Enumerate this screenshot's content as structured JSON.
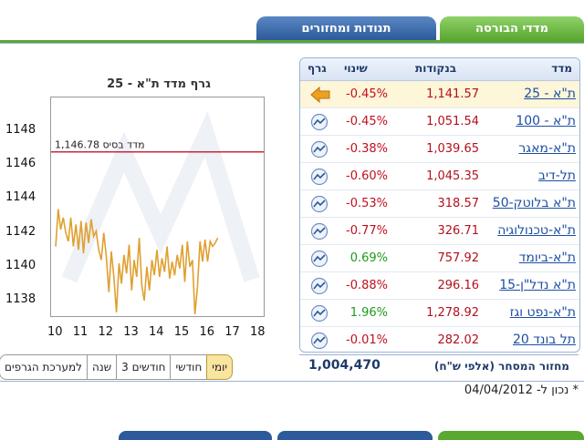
{
  "tabs": [
    {
      "label": "מדדי הבורסה",
      "active": true
    },
    {
      "label": "תנודות ומחזורים",
      "active": false
    }
  ],
  "chart": {
    "title": "גרף מדד ת\"א - 25",
    "base_label": "מדד בסיס 1,146.78",
    "base_value": 1146.78,
    "y_ticks": [
      "1148",
      "1146",
      "1144",
      "1142",
      "1140",
      "1138"
    ],
    "x_ticks": [
      "10",
      "11",
      "12",
      "13",
      "14",
      "15",
      "16",
      "17",
      "18"
    ]
  },
  "chart_data": {
    "type": "line",
    "title": "גרף מדד ת\"א - 25",
    "xlabel": "",
    "ylabel": "",
    "xlim": [
      10,
      18
    ],
    "ylim": [
      1137,
      1149
    ],
    "reference_line": {
      "label": "מדד בסיס 1,146.78",
      "value": 1146.78,
      "color": "#c8283a"
    },
    "series": [
      {
        "color": "#e0a030",
        "x": [
          10.0,
          10.1,
          10.2,
          10.3,
          10.4,
          10.5,
          10.6,
          10.7,
          10.8,
          10.9,
          11.0,
          11.1,
          11.2,
          11.3,
          11.4,
          11.5,
          11.6,
          11.7,
          11.8,
          11.9,
          12.0,
          12.1,
          12.2,
          12.3,
          12.4,
          12.5,
          12.6,
          12.7,
          12.8,
          12.9,
          13.0,
          13.1,
          13.2,
          13.3,
          13.4,
          13.5,
          13.6,
          13.7,
          13.8,
          13.9,
          14.0,
          14.1,
          14.2,
          14.3,
          14.4,
          14.5,
          14.6,
          14.7,
          14.8,
          14.9,
          15.0,
          15.1,
          15.2,
          15.3,
          15.4,
          15.5,
          15.6,
          15.7,
          15.8,
          15.9,
          16.0,
          16.1,
          16.2,
          16.3,
          16.4
        ],
        "y": [
          1141.2,
          1143.4,
          1142.2,
          1142.9,
          1142.0,
          1141.5,
          1142.9,
          1141.2,
          1142.5,
          1141.0,
          1142.7,
          1140.8,
          1142.6,
          1141.4,
          1142.8,
          1141.8,
          1142.1,
          1141.0,
          1140.4,
          1142.0,
          1140.6,
          1138.5,
          1140.9,
          1139.4,
          1137.3,
          1140.2,
          1139.0,
          1140.7,
          1139.6,
          1141.3,
          1138.6,
          1140.4,
          1139.4,
          1141.7,
          1138.9,
          1138.0,
          1140.0,
          1138.6,
          1140.4,
          1139.5,
          1141.0,
          1139.4,
          1140.5,
          1139.7,
          1141.2,
          1139.3,
          1140.3,
          1139.5,
          1140.7,
          1139.9,
          1141.3,
          1139.1,
          1141.5,
          1140.0,
          1140.4,
          1137.2,
          1138.8,
          1141.5,
          1140.3,
          1141.6,
          1140.3,
          1141.5,
          1141.2,
          1141.4,
          1141.7
        ]
      }
    ]
  },
  "periods": [
    {
      "label": "יומי",
      "active": true
    },
    {
      "label": "חודשי",
      "active": false
    },
    {
      "label": "3 חודשים",
      "active": false
    },
    {
      "label": "שנה",
      "active": false
    },
    {
      "label": "למערכת הגרפים",
      "active": false
    }
  ],
  "table": {
    "headers": {
      "name": "מדד",
      "points": "בנקודות",
      "change": "שינוי",
      "graph": "גרף"
    },
    "rows": [
      {
        "name": "ת\"א - 25",
        "points": "1,141.57",
        "change": "-0.45%",
        "dir": "neg",
        "icon": "arrow-left-icon",
        "selected": true
      },
      {
        "name": "ת\"א - 100",
        "points": "1,051.54",
        "change": "-0.45%",
        "dir": "neg",
        "icon": "chart-icon",
        "selected": false
      },
      {
        "name": "ת\"א-מאגר",
        "points": "1,039.65",
        "change": "-0.38%",
        "dir": "neg",
        "icon": "chart-icon",
        "selected": false
      },
      {
        "name": "תל-דיב",
        "points": "1,045.35",
        "change": "-0.60%",
        "dir": "neg",
        "icon": "chart-icon",
        "selected": false
      },
      {
        "name": "ת\"א בלוטק-50",
        "points": "318.57",
        "change": "-0.53%",
        "dir": "neg",
        "icon": "chart-icon",
        "selected": false
      },
      {
        "name": "ת\"א-טכנולוגיה",
        "points": "326.71",
        "change": "-0.77%",
        "dir": "neg",
        "icon": "chart-icon",
        "selected": false
      },
      {
        "name": "ת\"א-ביומד",
        "points": "757.92",
        "change": "0.69%",
        "dir": "pos",
        "icon": "chart-icon",
        "selected": false
      },
      {
        "name": "ת\"א נדל\"ן-15",
        "points": "296.16",
        "change": "-0.88%",
        "dir": "neg",
        "icon": "chart-icon",
        "selected": false
      },
      {
        "name": "ת\"א-נפט וגז",
        "points": "1,278.92",
        "change": "1.96%",
        "dir": "pos",
        "icon": "chart-icon",
        "selected": false
      },
      {
        "name": "תל בונד 20",
        "points": "282.02",
        "change": "-0.01%",
        "dir": "neg",
        "icon": "chart-icon",
        "selected": false
      }
    ]
  },
  "turnover": {
    "label": "מחזור המסחר (אלפי ש\"ח)",
    "value": "1,004,470"
  },
  "as_of": "* נכון ל- 04/04/2012",
  "colors": {
    "green_tab": "#5aa82f",
    "blue_tab": "#2c5a9a",
    "line": "#e0a030",
    "base_line": "#c8283a",
    "negative": "#c0101d",
    "positive": "#1c9a1c"
  }
}
